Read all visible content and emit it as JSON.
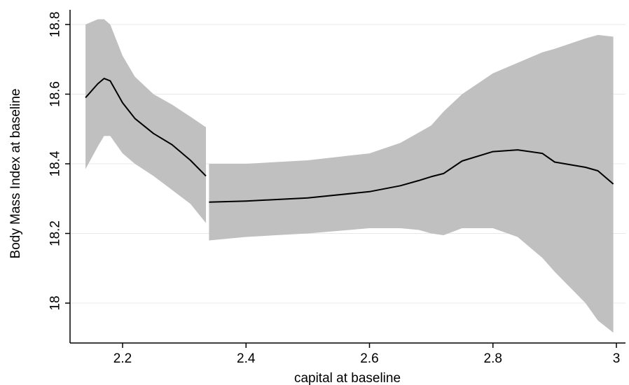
{
  "chart_data": {
    "type": "line",
    "title": "",
    "xlabel": "capital at baseline",
    "ylabel": "Body Mass Index at baseline",
    "xlim": [
      2.13,
      3.0
    ],
    "ylim": [
      17.9,
      18.82
    ],
    "x_ticks": [
      2.2,
      2.4,
      2.6,
      2.8,
      3.0
    ],
    "x_tick_labels": [
      "2.2",
      "2.4",
      "2.6",
      "2.8",
      "3"
    ],
    "y_ticks": [
      18.0,
      18.2,
      18.4,
      18.6,
      18.8
    ],
    "y_tick_labels": [
      "18",
      "18.2",
      "18.4",
      "18.6",
      "18.8"
    ],
    "grid": "horizontal",
    "colors": {
      "band": "#c0c0c0",
      "line": "#000000",
      "grid": "#e8e8e8"
    },
    "series": [
      {
        "segment": 1,
        "x": [
          2.14,
          2.16,
          2.17,
          2.18,
          2.2,
          2.22,
          2.25,
          2.28,
          2.31,
          2.335
        ],
        "y": [
          18.59,
          18.63,
          18.645,
          18.638,
          18.575,
          18.53,
          18.487,
          18.455,
          18.41,
          18.365
        ],
        "upper": [
          18.8,
          18.815,
          18.815,
          18.8,
          18.71,
          18.65,
          18.6,
          18.57,
          18.535,
          18.505
        ],
        "lower": [
          18.385,
          18.45,
          18.48,
          18.48,
          18.43,
          18.4,
          18.365,
          18.325,
          18.285,
          18.23
        ]
      },
      {
        "segment": 2,
        "x": [
          2.34,
          2.4,
          2.5,
          2.6,
          2.65,
          2.68,
          2.7,
          2.72,
          2.75,
          2.8,
          2.84,
          2.88,
          2.9,
          2.95,
          2.97,
          2.995
        ],
        "y": [
          18.29,
          18.293,
          18.302,
          18.32,
          18.337,
          18.352,
          18.363,
          18.372,
          18.408,
          18.435,
          18.44,
          18.43,
          18.405,
          18.39,
          18.38,
          18.342
        ],
        "upper": [
          18.4,
          18.4,
          18.41,
          18.43,
          18.46,
          18.49,
          18.51,
          18.55,
          18.6,
          18.66,
          18.69,
          18.72,
          18.73,
          18.76,
          18.77,
          18.765
        ],
        "lower": [
          18.18,
          18.19,
          18.2,
          18.215,
          18.215,
          18.21,
          18.2,
          18.195,
          18.215,
          18.215,
          18.19,
          18.13,
          18.09,
          18.0,
          17.95,
          17.915
        ]
      }
    ]
  }
}
